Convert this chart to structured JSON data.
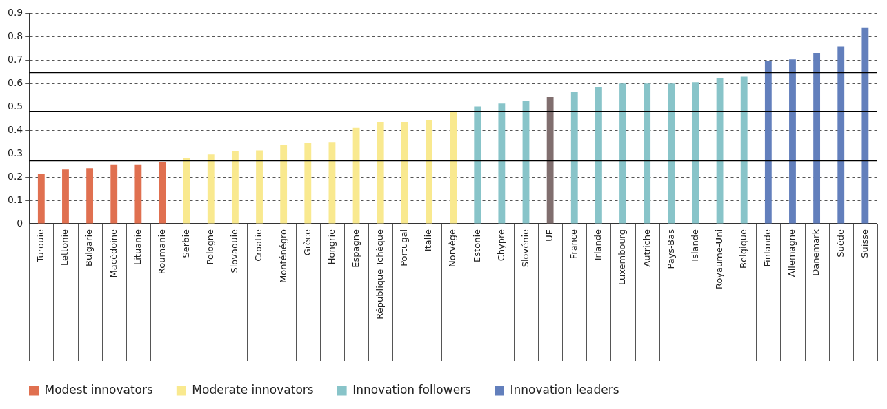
{
  "chart_data": {
    "type": "bar",
    "categories": [
      "Turquie",
      "Lettonie",
      "Bulgarie",
      "Macédoine",
      "Lituanie",
      "Roumanie",
      "Serbie",
      "Pologne",
      "Slovaquie",
      "Croatie",
      "Monténégro",
      "Grèce",
      "Hongrie",
      "Espagne",
      "République Tchèque",
      "Portugal",
      "Italie",
      "Norvège",
      "Estonie",
      "Chypre",
      "Slovénie",
      "UE",
      "France",
      "Irlande",
      "Luxembourg",
      "Autriche",
      "Pays-Bas",
      "Islande",
      "Royaume-Uni",
      "Belgique",
      "Finlande",
      "Allemagne",
      "Danemark",
      "Suède",
      "Suisse"
    ],
    "series": [
      {
        "name": "Modest innovators",
        "color": "#e07050",
        "values": [
          0.215,
          0.232,
          0.238,
          0.254,
          0.254,
          0.265,
          null,
          null,
          null,
          null,
          null,
          null,
          null,
          null,
          null,
          null,
          null,
          null,
          null,
          null,
          null,
          null,
          null,
          null,
          null,
          null,
          null,
          null,
          null,
          null,
          null,
          null,
          null,
          null,
          null
        ]
      },
      {
        "name": "Moderate innovators",
        "color": "#f9e98f",
        "values": [
          null,
          null,
          null,
          null,
          null,
          null,
          0.281,
          0.297,
          0.309,
          0.314,
          0.339,
          0.345,
          0.35,
          0.41,
          0.436,
          0.436,
          0.442,
          0.48,
          null,
          null,
          null,
          null,
          null,
          null,
          null,
          null,
          null,
          null,
          null,
          null,
          null,
          null,
          null,
          null,
          null
        ]
      },
      {
        "name": "Innovation followers",
        "color": "#88c4c9",
        "values": [
          null,
          null,
          null,
          null,
          null,
          null,
          null,
          null,
          null,
          null,
          null,
          null,
          null,
          null,
          null,
          null,
          null,
          null,
          0.502,
          0.515,
          0.526,
          null,
          0.564,
          0.586,
          0.6,
          0.6,
          0.6,
          0.606,
          0.623,
          0.629,
          null,
          null,
          null,
          null,
          null
        ]
      },
      {
        "color": "#806e6e",
        "values": [
          null,
          null,
          null,
          null,
          null,
          null,
          null,
          null,
          null,
          null,
          null,
          null,
          null,
          null,
          null,
          null,
          null,
          null,
          null,
          null,
          null,
          0.542,
          null,
          null,
          null,
          null,
          null,
          null,
          null,
          null,
          null,
          null,
          null,
          null,
          null
        ]
      },
      {
        "name": "Innovation leaders",
        "color": "#627fbc",
        "values": [
          null,
          null,
          null,
          null,
          null,
          null,
          null,
          null,
          null,
          null,
          null,
          null,
          null,
          null,
          null,
          null,
          null,
          null,
          null,
          null,
          null,
          null,
          null,
          null,
          null,
          null,
          null,
          null,
          null,
          null,
          0.698,
          0.703,
          0.73,
          0.758,
          0.84
        ]
      }
    ],
    "ylim": [
      0,
      0.9
    ],
    "yticks": [
      0,
      0.1,
      0.2,
      0.3,
      0.4,
      0.5,
      0.6,
      0.7,
      0.8,
      0.9
    ],
    "grid": "y",
    "legend": "bottom left",
    "ref_lines": [
      {
        "axis": "y",
        "value": 0.269,
        "color": "#000000"
      },
      {
        "axis": "y",
        "value": 0.481,
        "color": "#000000"
      },
      {
        "axis": "y",
        "value": 0.646,
        "color": "#000000"
      }
    ]
  }
}
